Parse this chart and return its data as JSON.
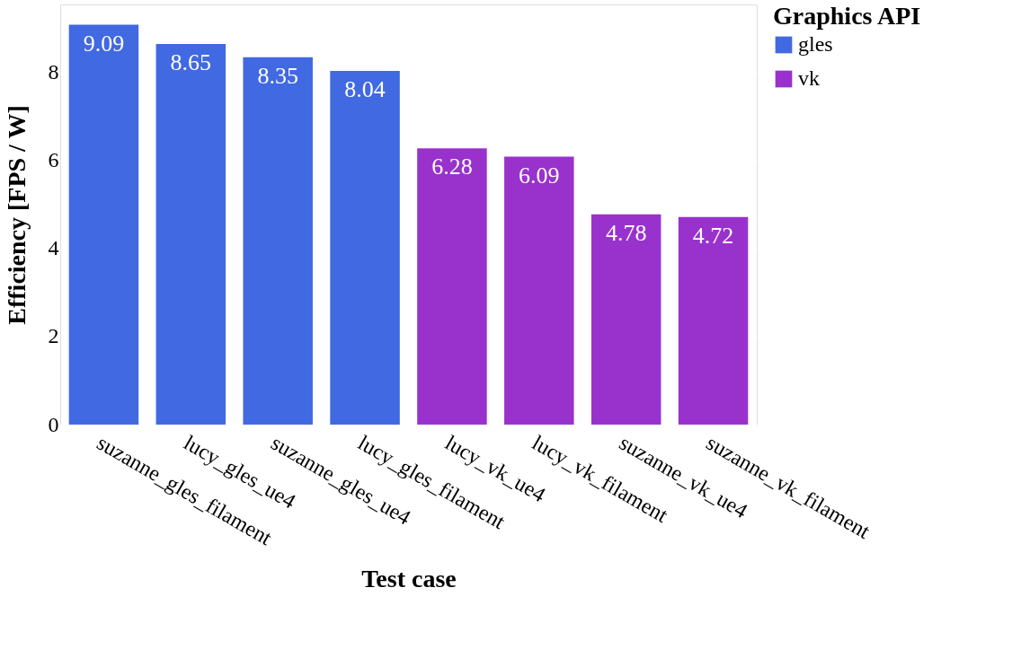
{
  "chart_data": {
    "type": "bar",
    "xlabel": "Test case",
    "ylabel": "Efficiency [FPS / W]",
    "legend_title": "Graphics API",
    "categories": [
      "suzanne_gles_filament",
      "lucy_gles_ue4",
      "suzanne_gles_ue4",
      "lucy_gles_filament",
      "lucy_vk_ue4",
      "lucy_vk_filament",
      "suzanne_vk_ue4",
      "suzanne_vk_filament"
    ],
    "series": [
      {
        "name": "gles",
        "color": "#4169e1",
        "values": [
          9.09,
          8.65,
          8.35,
          8.04,
          null,
          null,
          null,
          null
        ]
      },
      {
        "name": "vk",
        "color": "#9932cc",
        "values": [
          null,
          null,
          null,
          null,
          6.28,
          6.09,
          4.78,
          4.72
        ]
      }
    ],
    "ylim": [
      0,
      9.55
    ],
    "yticks": [
      0,
      2,
      4,
      6,
      8
    ],
    "grid": "y",
    "legend": "top right",
    "data_labels": true
  }
}
